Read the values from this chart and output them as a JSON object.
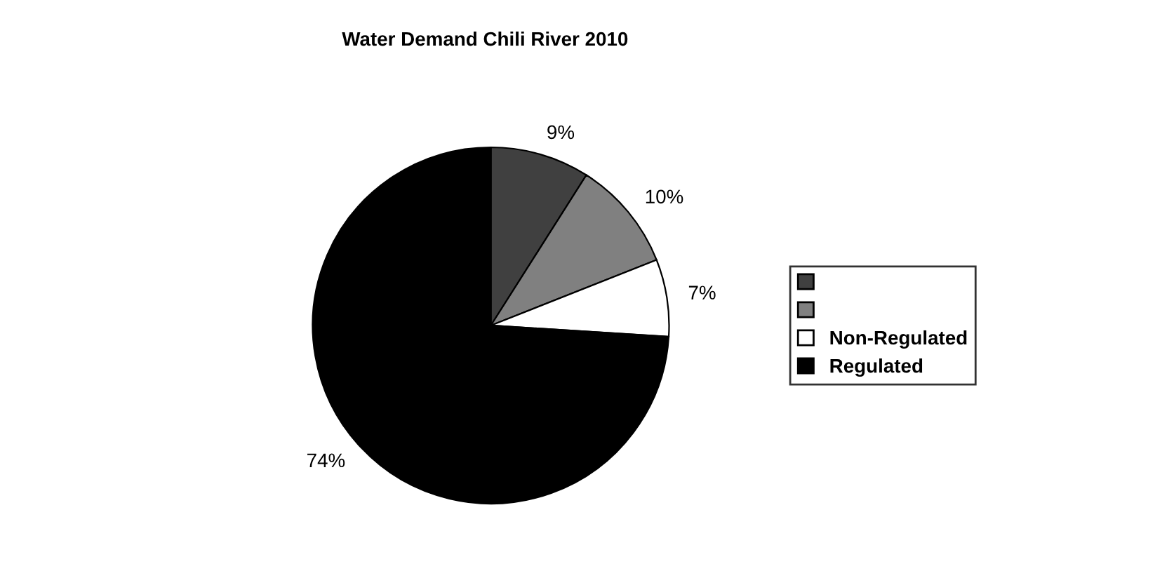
{
  "chart_data": {
    "type": "pie",
    "title": "Water Demand Chili River 2010",
    "categories": [
      null,
      null,
      "Non-Regulated",
      "Regulated"
    ],
    "values": [
      9,
      10,
      7,
      74
    ],
    "colors": [
      "#404040",
      "#808080",
      "#ffffff",
      "#000000"
    ],
    "value_labels": [
      "9%",
      "10%",
      "7%",
      "74%"
    ],
    "legend": "right"
  }
}
